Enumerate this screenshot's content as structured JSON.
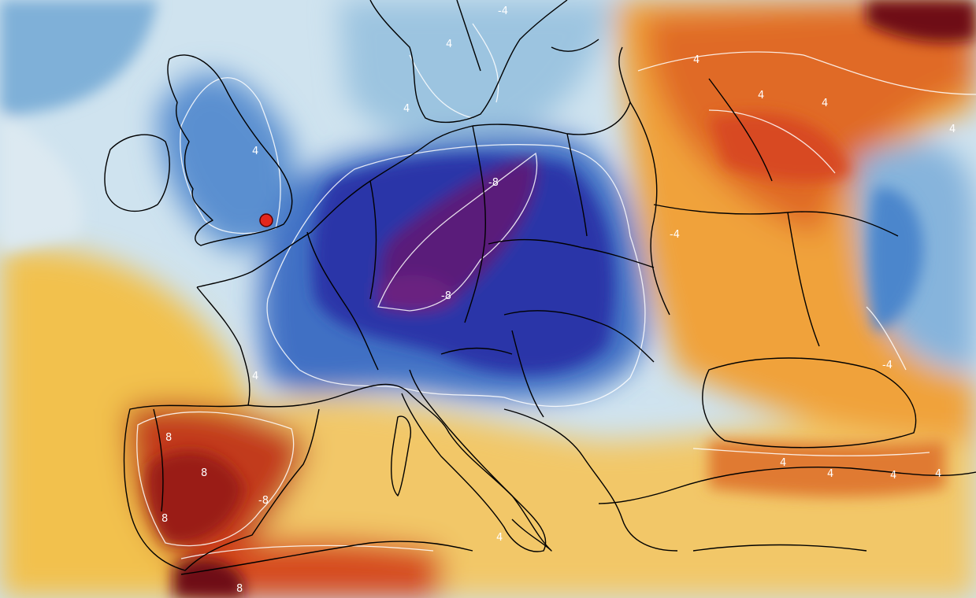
{
  "contour_labels": {
    "scandinavia_a": "-4",
    "scandinavia_b": "4",
    "baltic": "4",
    "russia_a": "4",
    "russia_b": "4",
    "russia_c": "4",
    "russia_east": "4",
    "britain": "4",
    "poland": "-8",
    "alps": "-8",
    "ukraine_west": "-4",
    "black_sea_north": "-4",
    "france": "4",
    "spain_a": "8",
    "spain_b": "8",
    "spain_c": "8",
    "spain_d": "-8",
    "africa_a": "8",
    "italy": "4",
    "turkey_a": "4",
    "turkey_b": "4",
    "turkey_c": "4",
    "turkey_d": "4"
  },
  "marker": {
    "color": "#e3261c",
    "stroke": "#5a0000"
  },
  "colors": {
    "deep_purple": "#5a1f7a",
    "dark_blue": "#2a35a8",
    "mid_blue": "#3f6fc4",
    "light_blue": "#9cc4e0",
    "pale": "#e8f1f5",
    "yellow": "#f2c14e",
    "orange": "#f0a23a",
    "red_orange": "#e06a28",
    "dark_red": "#b7271d",
    "maroon": "#6e0f12"
  }
}
